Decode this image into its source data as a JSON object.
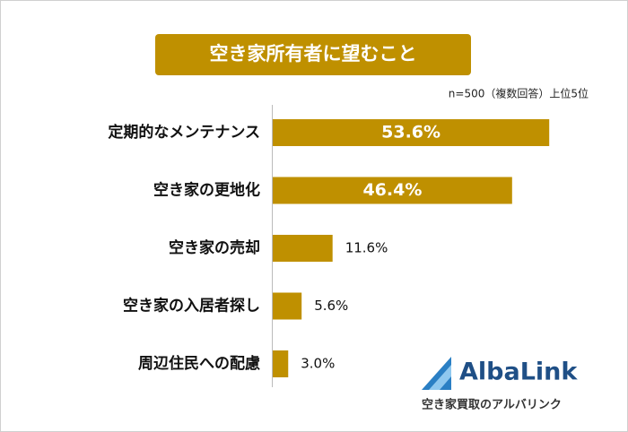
{
  "chart_data": {
    "type": "bar",
    "orientation": "horizontal",
    "title": "空き家所有者に望むこと",
    "subtitle": "n=500（複数回答）上位5位",
    "categories": [
      "定期的なメンテナンス",
      "空き家の更地化",
      "空き家の売却",
      "空き家の入居者探し",
      "周辺住民への配慮"
    ],
    "values": [
      53.6,
      46.4,
      11.6,
      5.6,
      3.0
    ],
    "value_labels": [
      "53.6%",
      "46.4%",
      "11.6%",
      "5.6%",
      "3.0%"
    ],
    "color": "#bf9000"
  },
  "logo": {
    "name": "AlbaLink",
    "tagline": "空き家買取のアルバリンク"
  }
}
